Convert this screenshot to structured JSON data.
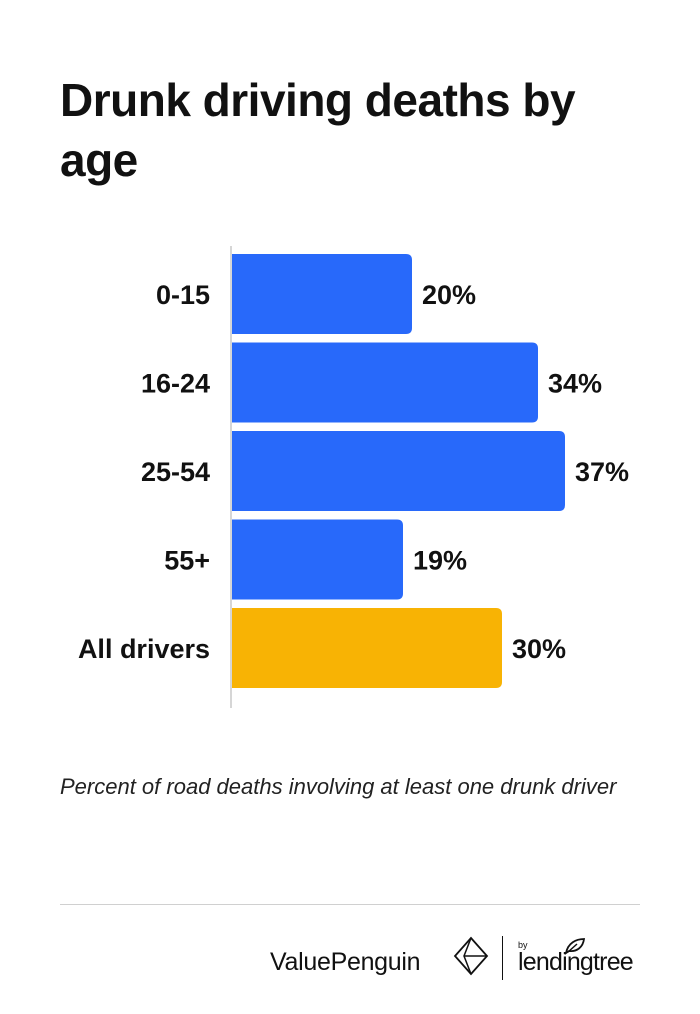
{
  "title": "Drunk driving deaths by age",
  "subtitle": "Percent of road deaths involving at least one drunk driver",
  "colors": {
    "bar_default": "#2869fa",
    "bar_highlight": "#f8b304",
    "axis": "#c8c8c8"
  },
  "chart_data": {
    "type": "bar",
    "orientation": "horizontal",
    "categories": [
      "0-15",
      "16-24",
      "25-54",
      "55+",
      "All drivers"
    ],
    "values": [
      20,
      34,
      37,
      19,
      30
    ],
    "value_labels": [
      "20%",
      "34%",
      "37%",
      "19%",
      "30%"
    ],
    "highlight_index": 4,
    "unit": "%",
    "xlim": [
      0,
      37
    ],
    "grid": false
  },
  "footer": {
    "brand": "ValuePenguin",
    "logo_icon": "valuepenguin-diamond-icon",
    "partner_prefix": "by",
    "partner": "lendingtree",
    "partner_icon": "leaf-icon"
  }
}
